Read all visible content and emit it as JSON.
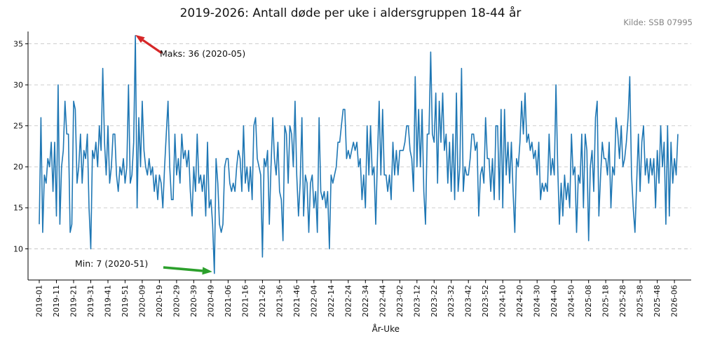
{
  "header": {
    "title": "2019-2026: Antall døde per uke i aldersgruppen 18-44 år",
    "source": "Kilde: SSB 07995"
  },
  "annotations": {
    "max": {
      "label": "Maks: 36 (2020-05)",
      "value": 36,
      "week": "2020-05",
      "week_index": 56,
      "arrow_color": "#d62728"
    },
    "min": {
      "label": "Min: 7 (2020-51)",
      "value": 7,
      "week": "2020-51",
      "week_index": 102,
      "arrow_color": "#2ca02c"
    }
  },
  "chart_data": {
    "type": "line",
    "title": "2019-2026: Antall døde per uke i aldersgruppen 18-44 år",
    "xlabel": "År-Uke",
    "ylabel": "",
    "grid": "horizontal-dashed",
    "legend": "none",
    "line_color": "#1f77b4",
    "ylim": [
      6.2,
      36.5
    ],
    "y_ticks": [
      10,
      15,
      20,
      25,
      30,
      35
    ],
    "x_tick_every": 10,
    "x_tick_labels": [
      "2019-01",
      "2019-11",
      "2019-21",
      "2019-31",
      "2019-41",
      "2019-51",
      "2020-09",
      "2020-19",
      "2020-29",
      "2020-39",
      "2020-49",
      "2021-06",
      "2021-16",
      "2021-26",
      "2021-36",
      "2021-46",
      "2022-04",
      "2022-14",
      "2022-24",
      "2022-34",
      "2022-44",
      "2023-02",
      "2023-12",
      "2023-22",
      "2023-32",
      "2023-42",
      "2023-52",
      "2024-10",
      "2024-20",
      "2024-30",
      "2024-40",
      "2024-50",
      "2025-08",
      "2025-18",
      "2025-28",
      "2025-38",
      "2025-48",
      "2026-06"
    ],
    "weeks_per_year": {
      "2019": 52,
      "2020": 53,
      "2021": 52,
      "2022": 52,
      "2023": 52,
      "2024": 52,
      "2025": 52,
      "2026": 8
    },
    "values": [
      13,
      26,
      12,
      19,
      18,
      21,
      20,
      23,
      17,
      23,
      14,
      30,
      13,
      20,
      22,
      28,
      24,
      24,
      12,
      13,
      28,
      27,
      18,
      20,
      24,
      18,
      22,
      21,
      24,
      15,
      10,
      22,
      21,
      23,
      20,
      25,
      22,
      32,
      23,
      19,
      25,
      18,
      20,
      24,
      24,
      19,
      17,
      20,
      19,
      21,
      18,
      20,
      30,
      18,
      19,
      23,
      36,
      15,
      26,
      20,
      28,
      22,
      20,
      19,
      21,
      19,
      20,
      17,
      19,
      16,
      19,
      18,
      15,
      20,
      24,
      28,
      20,
      16,
      16,
      24,
      19,
      21,
      18,
      24,
      21,
      22,
      20,
      22,
      17,
      14,
      20,
      17,
      24,
      18,
      19,
      17,
      19,
      14,
      23,
      15,
      16,
      13,
      7,
      21,
      18,
      13,
      12,
      13,
      20,
      21,
      21,
      18,
      17,
      18,
      17,
      20,
      22,
      21,
      17,
      25,
      18,
      20,
      17,
      20,
      16,
      25,
      26,
      21,
      20,
      19,
      9,
      21,
      20,
      22,
      13,
      20,
      26,
      21,
      19,
      23,
      17,
      16,
      11,
      25,
      24,
      18,
      25,
      24,
      20,
      28,
      19,
      14,
      18,
      26,
      14,
      19,
      18,
      12,
      18,
      19,
      15,
      17,
      12,
      26,
      17,
      16,
      17,
      15,
      17,
      10,
      19,
      18,
      19,
      20,
      23,
      23,
      25,
      27,
      27,
      21,
      22,
      21,
      22,
      23,
      22,
      23,
      20,
      21,
      16,
      19,
      15,
      25,
      19,
      25,
      19,
      20,
      13,
      21,
      28,
      19,
      27,
      19,
      19,
      17,
      19,
      16,
      23,
      19,
      22,
      19,
      22,
      22,
      22,
      23,
      25,
      25,
      22,
      21,
      17,
      31,
      20,
      27,
      20,
      27,
      17,
      13,
      24,
      24,
      34,
      24,
      23,
      29,
      18,
      28,
      23,
      29,
      22,
      24,
      18,
      23,
      17,
      24,
      16,
      29,
      17,
      20,
      32,
      17,
      20,
      19,
      19,
      21,
      24,
      24,
      22,
      23,
      14,
      19,
      20,
      18,
      26,
      21,
      21,
      17,
      21,
      16,
      25,
      25,
      16,
      27,
      15,
      27,
      19,
      23,
      18,
      23,
      17,
      12,
      21,
      20,
      23,
      28,
      24,
      29,
      23,
      24,
      22,
      23,
      21,
      22,
      19,
      23,
      16,
      18,
      17,
      18,
      17,
      24,
      19,
      21,
      19,
      30,
      20,
      13,
      18,
      14,
      19,
      16,
      18,
      15,
      24,
      19,
      20,
      12,
      19,
      18,
      24,
      15,
      24,
      22,
      11,
      20,
      22,
      17,
      26,
      28,
      14,
      19,
      23,
      21,
      21,
      19,
      23,
      15,
      20,
      19,
      26,
      24,
      21,
      25,
      20,
      21,
      23,
      26,
      31,
      19,
      15,
      12,
      18,
      24,
      17,
      23,
      25,
      19,
      21,
      18,
      21,
      19,
      21,
      15,
      22,
      18,
      25,
      20,
      23,
      13,
      25,
      14,
      23,
      18,
      21,
      19,
      24
    ]
  }
}
